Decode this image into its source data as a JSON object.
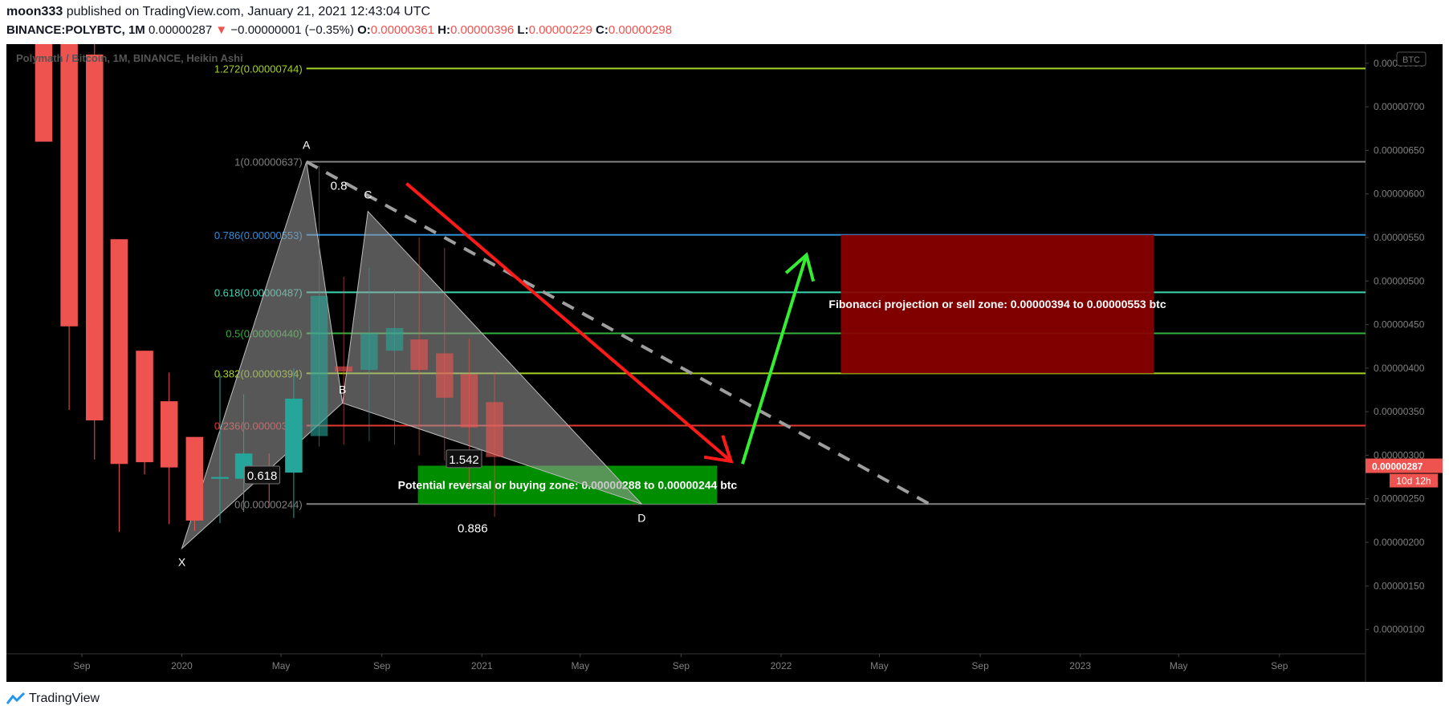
{
  "header": {
    "author": "moon333",
    "published_text": "published on TradingView.com, January 21, 2021 12:43:04 UTC",
    "symbol": "BINANCE:POLYBTC, 1M",
    "last": "0.00000287",
    "change_arrow": "▼",
    "change": "−0.00000001 (−0.35%)",
    "o_label": "O:",
    "o_value": "0.00000361",
    "h_label": "H:",
    "h_value": "0.00000396",
    "l_label": "L:",
    "l_value": "0.00000229",
    "c_label": "C:",
    "c_value": "0.00000298"
  },
  "footer": {
    "brand": "TradingView",
    "logo_icon": "tradingview-logo-icon"
  },
  "chart_data": {
    "type": "candlestick",
    "title": "Polymath / Bitcoin, 1M, BINANCE, Heikin Ashi",
    "currency_badge": "BTC",
    "colors": {
      "background": "#000000",
      "up": "#26a69a",
      "down": "#ef5350"
    },
    "y_axis": {
      "ticks": [
        "0.00000100",
        "0.00000150",
        "0.00000200",
        "0.00000250",
        "0.00000300",
        "0.00000350",
        "0.00000400",
        "0.00000450",
        "0.00000500",
        "0.00000550",
        "0.00000600",
        "0.00000650",
        "0.00000700",
        "0.00000750"
      ],
      "ylim": [
        7.2e-07,
        7.72e-06
      ],
      "last_price_label": "0.00000287",
      "countdown_label": "10d 12h"
    },
    "x_axis": {
      "range": [
        "2019-06-01",
        "2023-12-15"
      ],
      "ticks": [
        {
          "date": "2019-09-01",
          "label": "Sep"
        },
        {
          "date": "2020-01-01",
          "label": "2020"
        },
        {
          "date": "2020-05-01",
          "label": "May"
        },
        {
          "date": "2020-09-01",
          "label": "Sep"
        },
        {
          "date": "2021-01-01",
          "label": "2021"
        },
        {
          "date": "2021-05-01",
          "label": "May"
        },
        {
          "date": "2021-09-01",
          "label": "Sep"
        },
        {
          "date": "2022-01-01",
          "label": "2022"
        },
        {
          "date": "2022-05-01",
          "label": "May"
        },
        {
          "date": "2022-09-01",
          "label": "Sep"
        },
        {
          "date": "2023-01-01",
          "label": "2023"
        },
        {
          "date": "2023-05-01",
          "label": "May"
        },
        {
          "date": "2023-09-01",
          "label": "Sep"
        }
      ]
    },
    "candles": [
      {
        "date": "2019-07-01",
        "o": 9.5e-06,
        "h": 1e-05,
        "l": 6.65e-06,
        "c": 6.6e-06,
        "faded": false
      },
      {
        "date": "2019-08-01",
        "o": 8.5e-06,
        "h": 9.5e-06,
        "l": 3.52e-06,
        "c": 4.48e-06,
        "faded": false
      },
      {
        "date": "2019-09-01",
        "o": 7.6e-06,
        "h": 8.3e-06,
        "l": 2.95e-06,
        "c": 3.4e-06,
        "faded": false
      },
      {
        "date": "2019-10-01",
        "o": 5.48e-06,
        "h": 5.48e-06,
        "l": 2.12e-06,
        "c": 2.9e-06,
        "faded": false
      },
      {
        "date": "2019-11-01",
        "o": 4.2e-06,
        "h": 4.2e-06,
        "l": 2.78e-06,
        "c": 2.92e-06,
        "faded": false
      },
      {
        "date": "2019-12-01",
        "o": 3.62e-06,
        "h": 3.95e-06,
        "l": 2.21e-06,
        "c": 2.86e-06,
        "faded": false
      },
      {
        "date": "2020-01-01",
        "o": 3.21e-06,
        "h": 3.21e-06,
        "l": 2.13e-06,
        "c": 2.25e-06,
        "faded": false
      },
      {
        "date": "2020-02-01",
        "o": 2.73e-06,
        "h": 3.93e-06,
        "l": 2.22e-06,
        "c": 2.75e-06,
        "faded": false
      },
      {
        "date": "2020-03-01",
        "o": 2.73e-06,
        "h": 3.7e-06,
        "l": 2.35e-06,
        "c": 3.02e-06,
        "faded": false
      },
      {
        "date": "2020-04-01",
        "o": 2.86e-06,
        "h": 3.02e-06,
        "l": 2.4e-06,
        "c": 2.79e-06,
        "faded": false
      },
      {
        "date": "2020-05-01",
        "o": 2.8e-06,
        "h": 4e-06,
        "l": 2.28e-06,
        "c": 3.65e-06,
        "faded": false
      },
      {
        "date": "2020-06-01",
        "o": 3.22e-06,
        "h": 6.32e-06,
        "l": 3.1e-06,
        "c": 4.83e-06,
        "faded": true
      },
      {
        "date": "2020-07-01",
        "o": 4.02e-06,
        "h": 5.05e-06,
        "l": 3.12e-06,
        "c": 3.96e-06,
        "faded": true
      },
      {
        "date": "2020-08-01",
        "o": 3.98e-06,
        "h": 5.15e-06,
        "l": 3.16e-06,
        "c": 4.4e-06,
        "faded": true
      },
      {
        "date": "2020-09-01",
        "o": 4.2e-06,
        "h": 4.9e-06,
        "l": 3.12e-06,
        "c": 4.46e-06,
        "faded": true
      },
      {
        "date": "2020-10-01",
        "o": 4.33e-06,
        "h": 5.5e-06,
        "l": 3e-06,
        "c": 3.98e-06,
        "faded": true
      },
      {
        "date": "2020-11-01",
        "o": 4.17e-06,
        "h": 5.38e-06,
        "l": 2.94e-06,
        "c": 3.66e-06,
        "faded": true
      },
      {
        "date": "2020-12-01",
        "o": 3.93e-06,
        "h": 4.34e-06,
        "l": 2.63e-06,
        "c": 3.32e-06,
        "faded": true
      },
      {
        "date": "2021-01-01",
        "o": 3.61e-06,
        "h": 3.96e-06,
        "l": 2.29e-06,
        "c": 2.98e-06,
        "faded": true
      }
    ],
    "fib_levels": [
      {
        "label": "1.272(0.00000744)",
        "value": 7.44e-06,
        "color": "#a5d125"
      },
      {
        "label": "1(0.00000637)",
        "value": 6.37e-06,
        "color": "#808080"
      },
      {
        "label": "0.786(0.00000553)",
        "value": 5.53e-06,
        "color": "#2f8fd5"
      },
      {
        "label": "0.618(0.00000487)",
        "value": 4.87e-06,
        "color": "#3dd6b3"
      },
      {
        "label": "0.5(0.00000440)",
        "value": 4.4e-06,
        "color": "#38b03d"
      },
      {
        "label": "0.382(0.00000394)",
        "value": 3.94e-06,
        "color": "#a5d125"
      },
      {
        "label": "0.236(0.00000334)",
        "value": 3.34e-06,
        "color": "#e53935"
      },
      {
        "label": "0(0.00000244)",
        "value": 2.44e-06,
        "color": "#808080"
      }
    ],
    "harmonic_pattern": {
      "points": [
        {
          "label": "X",
          "date": "2020-01-01",
          "price": 1.93e-06
        },
        {
          "label": "A",
          "date": "2020-06-01",
          "price": 6.37e-06
        },
        {
          "label": "B",
          "date": "2020-07-15",
          "price": 3.6e-06
        },
        {
          "label": "C",
          "date": "2020-08-15",
          "price": 5.8e-06
        },
        {
          "label": "D",
          "date": "2021-07-15",
          "price": 2.44e-06
        }
      ],
      "ratios": [
        "0.618",
        "0.8",
        "0.886",
        "1.542"
      ]
    },
    "zones": [
      {
        "name": "sell",
        "label": "Fibonacci projection or sell zone: 0.00000394 to 0.00000553 btc",
        "from_date": "2022-03-15",
        "to_date": "2023-04-01",
        "low": 3.94e-06,
        "high": 5.53e-06,
        "color": "#8b0000"
      },
      {
        "name": "buy",
        "label": "Potential reversal or buying zone: 0.00000288 to 0.00000244 btc",
        "from_date": "2020-10-15",
        "to_date": "2021-10-15",
        "low": 2.44e-06,
        "high": 2.88e-06,
        "color": "#009900"
      }
    ],
    "arrows": [
      {
        "name": "down",
        "color": "#ff1a1a",
        "from_date": "2020-10-01",
        "from_price": 6.12e-06,
        "to_date": "2021-11-01",
        "to_price": 2.93e-06
      },
      {
        "name": "up",
        "color": "#33ee33",
        "from_date": "2021-11-15",
        "from_price": 2.9e-06,
        "to_date": "2022-02-01",
        "to_price": 5.3e-06
      }
    ],
    "trendline": {
      "style": "dashed",
      "color": "#9e9e9e",
      "from_date": "2020-06-01",
      "from_price": 6.37e-06,
      "to_date": "2022-07-01",
      "to_price": 2.44e-06
    }
  }
}
